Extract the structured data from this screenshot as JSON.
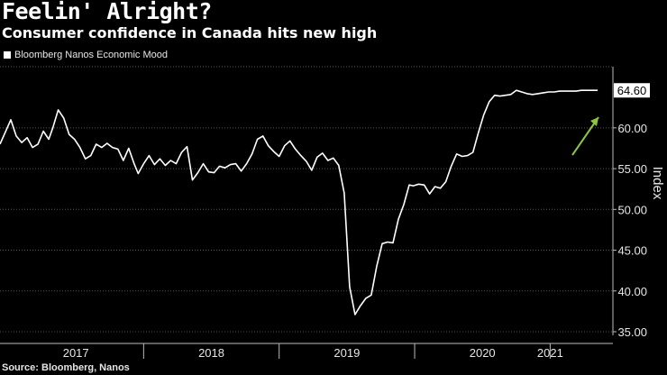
{
  "header": {
    "title": "Feelin' Alright?",
    "subtitle": "Consumer confidence in Canada hits new high"
  },
  "legend": {
    "label": "Bloomberg Nanos Economic Mood"
  },
  "source": "Source: Bloomberg, Nanos",
  "colors": {
    "line": "#ffffff",
    "arrow": "#8cc63f",
    "grid": "#555555",
    "background": "#000000"
  },
  "chart_data": {
    "type": "line",
    "title": "Consumer confidence in Canada hits new high",
    "xlabel": "",
    "ylabel": "Index",
    "ylim": [
      35,
      67.5
    ],
    "yticks": [
      "35.00",
      "40.00",
      "45.00",
      "50.00",
      "55.00",
      "60.00"
    ],
    "xlim": [
      2016.94,
      2021.37
    ],
    "x_tick_labels": [
      {
        "label": "2017",
        "at": 2017.5
      },
      {
        "label": "2018",
        "at": 2018.5
      },
      {
        "label": "2019",
        "at": 2019.5
      },
      {
        "label": "2020",
        "at": 2020.5
      },
      {
        "label": "2021",
        "at": 2021.0
      }
    ],
    "year_boundaries": [
      2018.0,
      2019.0,
      2020.0,
      2021.0
    ],
    "last_value_label": "64.60",
    "annotation": "green upward arrow",
    "series": [
      {
        "name": "Bloomberg Nanos Economic Mood",
        "x": [
          2016.94,
          2016.98,
          2017.02,
          2017.06,
          2017.1,
          2017.14,
          2017.18,
          2017.22,
          2017.26,
          2017.3,
          2017.33,
          2017.37,
          2017.41,
          2017.45,
          2017.49,
          2017.53,
          2017.57,
          2017.61,
          2017.65,
          2017.69,
          2017.73,
          2017.77,
          2017.81,
          2017.85,
          2017.89,
          2017.93,
          2017.96,
          2018.0,
          2018.04,
          2018.08,
          2018.12,
          2018.16,
          2018.2,
          2018.24,
          2018.28,
          2018.32,
          2018.36,
          2018.4,
          2018.44,
          2018.48,
          2018.52,
          2018.56,
          2018.6,
          2018.64,
          2018.68,
          2018.72,
          2018.76,
          2018.8,
          2018.84,
          2018.88,
          2018.92,
          2018.96,
          2019.0,
          2019.04,
          2019.08,
          2019.12,
          2019.16,
          2019.2,
          2019.24,
          2019.28,
          2019.32,
          2019.36,
          2019.4,
          2019.44,
          2019.48,
          2019.52,
          2019.56,
          2019.6,
          2019.64,
          2019.68,
          2019.72,
          2019.76,
          2019.8,
          2019.84,
          2019.88,
          2019.92,
          2019.96,
          2019.99,
          2020.03,
          2020.07,
          2020.11,
          2020.15,
          2020.19,
          2020.23,
          2020.27,
          2020.31,
          2020.35,
          2020.39,
          2020.43,
          2020.47,
          2020.51,
          2020.55,
          2020.59,
          2020.63,
          2020.67,
          2020.71,
          2020.75,
          2020.79,
          2020.83,
          2020.87,
          2020.91,
          2020.95,
          2020.99,
          2021.03,
          2021.07,
          2021.11,
          2021.15,
          2021.19,
          2021.23,
          2021.27,
          2021.31,
          2021.35
        ],
        "y": [
          58.0,
          59.5,
          61.0,
          59.0,
          58.2,
          58.8,
          57.6,
          58.0,
          59.6,
          58.6,
          60.0,
          62.2,
          61.2,
          59.2,
          58.6,
          57.6,
          56.2,
          56.6,
          58.0,
          57.6,
          58.1,
          57.6,
          57.4,
          56.0,
          57.5,
          55.6,
          54.4,
          55.6,
          56.6,
          55.5,
          56.2,
          55.4,
          56.0,
          55.6,
          57.0,
          57.7,
          53.6,
          54.5,
          55.6,
          54.6,
          54.5,
          55.3,
          55.1,
          55.5,
          55.6,
          54.7,
          55.6,
          56.8,
          58.6,
          59.0,
          57.8,
          57.1,
          56.5,
          57.8,
          58.4,
          57.4,
          56.6,
          55.9,
          54.8,
          56.4,
          56.9,
          56.0,
          56.3,
          55.4,
          52.0,
          40.5,
          37.1,
          38.2,
          39.1,
          39.5,
          43.0,
          45.8,
          46.0,
          45.9,
          48.8,
          50.6,
          53.0,
          52.9,
          53.1,
          53.0,
          51.9,
          52.8,
          52.6,
          53.4,
          55.3,
          56.8,
          56.5,
          56.6,
          57.0,
          59.4,
          61.6,
          63.2,
          64.0,
          63.9,
          64.0,
          64.1,
          64.6,
          64.4,
          64.2,
          64.1,
          64.2,
          64.3,
          64.4,
          64.4,
          64.5,
          64.5,
          64.5,
          64.5,
          64.6,
          64.6,
          64.6,
          64.6
        ]
      }
    ]
  }
}
